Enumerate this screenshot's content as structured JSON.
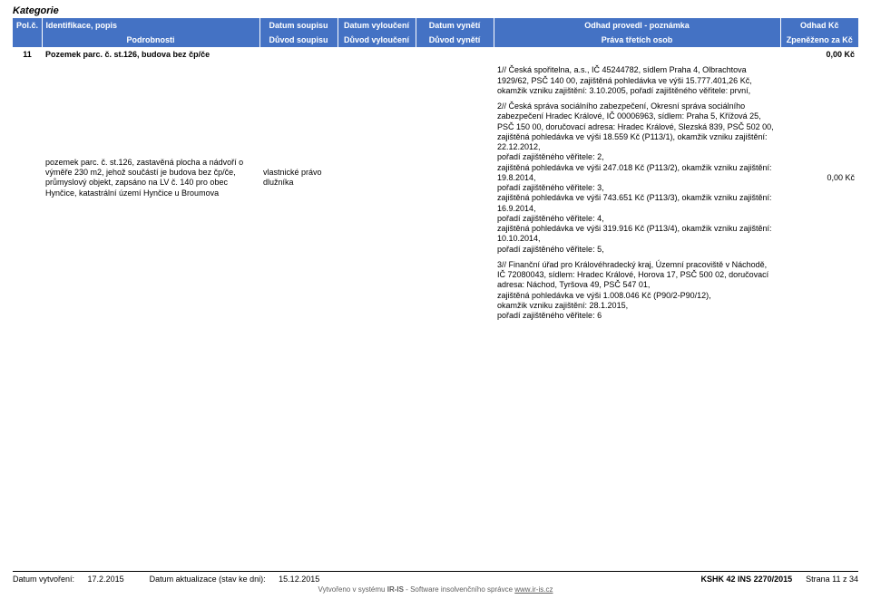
{
  "title": "Kategorie",
  "header": {
    "row1": [
      "Pol.č.",
      "Identifikace, popis",
      "Datum soupisu",
      "Datum vyloučení",
      "Datum vynětí",
      "Odhad provedl - poznámka",
      "Odhad Kč"
    ],
    "row2": [
      "",
      "Podrobnosti",
      "Důvod soupisu",
      "Důvod vyloučení",
      "Důvod vynětí",
      "Práva třetích osob",
      "Zpeněženo za Kč"
    ]
  },
  "colors": {
    "header_bg": "#4472c4",
    "header_fg": "#ffffff",
    "page_bg": "#ffffff",
    "text": "#000000",
    "rule": "#000000"
  },
  "rows": [
    {
      "pol": "11",
      "ident": "Pozemek parc. č. st.126, budova bez čp/če",
      "odhad_kc": "0,00 Kč"
    },
    {
      "note": "1// Česká spořitelna, a.s., IČ 45244782, sídlem Praha 4, Olbrachtova 1929/62, PSČ 140 00, zajištěná pohledávka ve výši 15.777.401,26 Kč, okamžik vzniku zajištění: 3.10.2005, pořadí zajištěného věřitele: první,"
    },
    {
      "ident_detail": "pozemek parc. č. st.126, zastavěná plocha a nádvoří o výměře 230 m2, jehož součástí je budova bez čp/če, průmyslový objekt, zapsáno na LV č. 140 pro obec Hynčice, katastrální území Hynčice u Broumova",
      "duvod_soupisu": "vlastnické právo dlužníka",
      "note": "2// Česká správa sociálního zabezpečení, Okresní správa sociálního zabezpečení Hradec Králové, IČ 00006963, sídlem: Praha 5, Křížová 25, PSČ 150 00, doručovací adresa: Hradec Králové, Slezská 839, PSČ 502 00,\nzajištěná pohledávka ve výši 18.559 Kč (P113/1), okamžik vzniku zajištění: 22.12.2012,\npořadí zajištěného věřitele: 2,\nzajištěná pohledávka ve výši 247.018 Kč (P113/2), okamžik vzniku zajištění: 19.8.2014,\npořadí zajištěného věřitele: 3,\nzajištěná pohledávka ve výši 743.651 Kč (P113/3), okamžik vzniku zajištění: 16.9.2014,\npořadí zajištěného věřitele: 4,\nzajištěná pohledávka ve výši 319.916 Kč (P113/4), okamžik vzniku zajištění: 10.10.2014,\npořadí zajištěného věřitele: 5,",
      "odhad_kc": "0,00 Kč"
    },
    {
      "note": "3// Finanční úřad pro Královéhradecký kraj, Územní pracoviště v Náchodě, IČ 72080043, sídlem: Hradec Králové, Horova 17, PSČ 500 02, doručovací adresa: Náchod, Tyršova 49, PSČ 547 01,\nzajištěná pohledávka ve výši 1.008.046 Kč (P90/2-P90/12),\nokamžik vzniku zajištění: 28.1.2015,\npořadí zajištěného věřitele: 6"
    }
  ],
  "footer": {
    "created_label": "Datum vytvoření:",
    "created_value": "17.2.2015",
    "updated_label": "Datum aktualizace (stav ke dni):",
    "updated_value": "15.12.2015",
    "case": "KSHK 42 INS 2270/2015",
    "page": "Strana 11 z 34",
    "subline_prefix": "Vytvořeno v systému ",
    "subline_app": "IR-IS",
    "subline_mid": " - Software insolvenčního správce ",
    "subline_url": "www.ir-is.cz"
  }
}
